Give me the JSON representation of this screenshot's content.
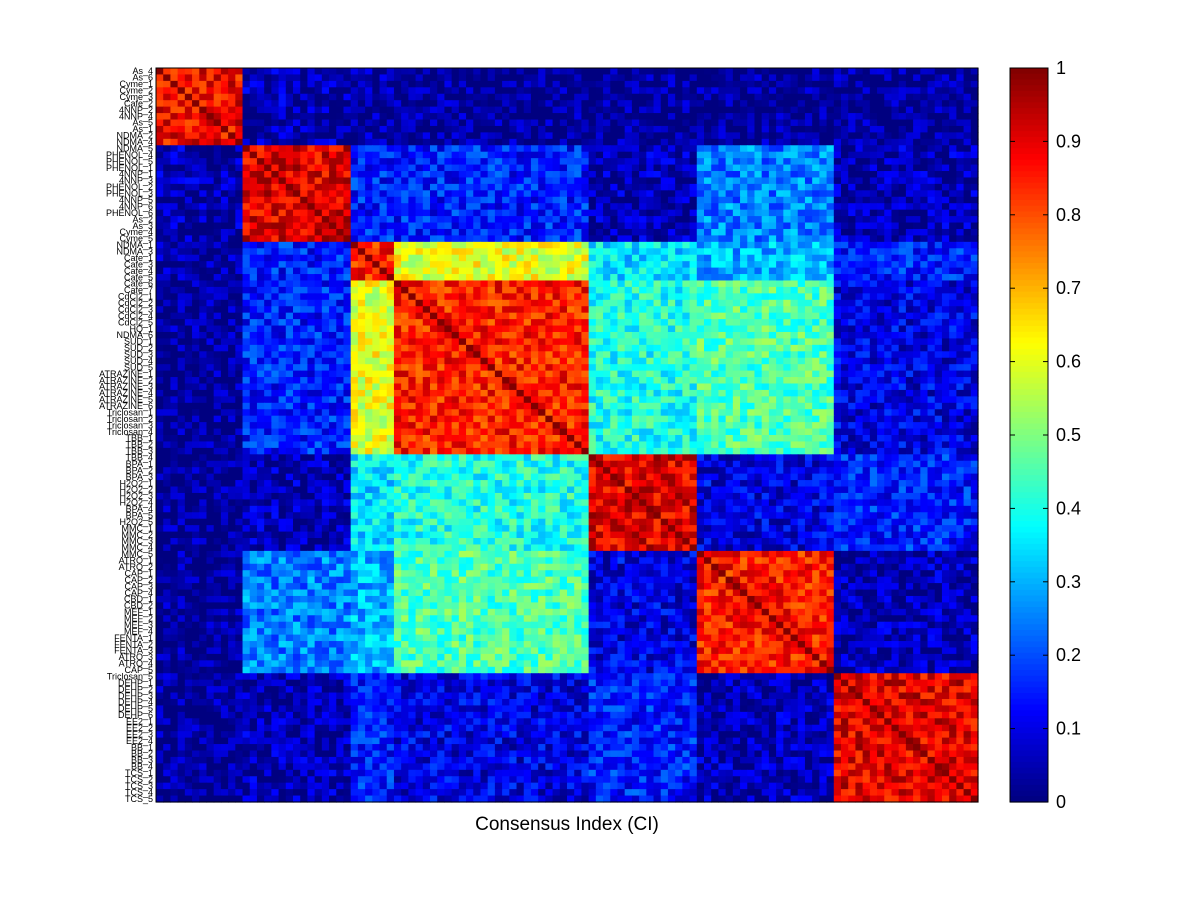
{
  "chart_data": {
    "type": "heatmap",
    "title": "",
    "xlabel": "Consensus Index (CI)",
    "ylabel": "",
    "colormap": "jet",
    "clim": [
      0,
      1
    ],
    "colorbar": {
      "ticks": [
        0,
        0.1,
        0.2,
        0.3,
        0.4,
        0.5,
        0.6,
        0.7,
        0.8,
        0.9,
        1
      ],
      "tick_labels": [
        "0",
        "0.1",
        "0.2",
        "0.3",
        "0.4",
        "0.5",
        "0.6",
        "0.7",
        "0.8",
        "0.9",
        "1"
      ]
    },
    "row_labels": [
      "As_4",
      "As_6",
      "Cyme_1",
      "Cyme_2",
      "Cyme_3",
      "Cafe_2",
      "4NNP_2",
      "4NNP_4",
      "As_5",
      "As_1",
      "NDMA_2",
      "NDMA_4",
      "NDMA_5",
      "PHENOL_4",
      "PHENOL_5",
      "PHENOL_1",
      "4NNP_1",
      "4NNP_3",
      "PHENOL_2",
      "PHENOL_3",
      "4NNP_5",
      "4NNP_6",
      "PHENOL_6",
      "As_2",
      "As_3",
      "Cyme_4",
      "Cyme_5",
      "NDMA_1",
      "NDMA_3",
      "Cafe_1",
      "Cafe_3",
      "Cafe_4",
      "Cafe_5",
      "Cafe_6",
      "Cafe_7",
      "CdCl2_1",
      "CdCl2_2",
      "CdCl2_3",
      "CdCl2_4",
      "CdCl2_5",
      "HQ_1",
      "NDMA_6",
      "SUD_1",
      "SUD_2",
      "SUD_3",
      "SUD_4",
      "SUD_5",
      "ATRAZINE_1",
      "ATRAZINE_2",
      "ATRAZINE_3",
      "ATRAZINE_4",
      "ATRAZINE_5",
      "ATRAZINE_6",
      "Triclosan_1",
      "Triclosan_2",
      "Triclosan_3",
      "Triclosan_4",
      "TBB_1",
      "TBB_2",
      "TBB_3",
      "TBB_4",
      "BPA_1",
      "BPA_2",
      "BPA_3",
      "H2O2_1",
      "H2O2_2",
      "H2O2_3",
      "H2O2_4",
      "BPA_4",
      "BPA_5",
      "H2O2_5",
      "MMC_1",
      "MMC_2",
      "MMC_3",
      "MMC_4",
      "MMC_5",
      "ATRO_1",
      "ATRO_2",
      "CAP_1",
      "CAP_2",
      "CAP_3",
      "CAP_4",
      "CBD_1",
      "CBD_2",
      "MEF_1",
      "MEF_2",
      "MEF_3",
      "MEF_4",
      "FENTA_1",
      "FENTA_2",
      "FENTA_3",
      "ATRO_3",
      "ATRO_4",
      "CAP_5",
      "Triclosan_5",
      "DEHP_1",
      "DEHP_2",
      "DEHP_3",
      "DEHP_4",
      "DEHP_5",
      "DEHP_6",
      "EE2_1",
      "EE2_2",
      "EE2_3",
      "EE2_4",
      "BB_1",
      "BB_2",
      "BB_3",
      "BB_4",
      "TCS_1",
      "TCS_2",
      "TCS_3",
      "TCS_4",
      "TCS_5"
    ],
    "n_items": 114,
    "cluster_boundaries": [
      0,
      12,
      27,
      33,
      60,
      75,
      94,
      114
    ],
    "block_values": [
      [
        0.88,
        0.05,
        0.03,
        0.02,
        0.02,
        0.02,
        0.02
      ],
      [
        0.05,
        0.9,
        0.15,
        0.15,
        0.05,
        0.25,
        0.05
      ],
      [
        0.03,
        0.15,
        0.85,
        0.6,
        0.35,
        0.3,
        0.15
      ],
      [
        0.02,
        0.15,
        0.6,
        0.85,
        0.4,
        0.45,
        0.1
      ],
      [
        0.02,
        0.05,
        0.35,
        0.4,
        0.9,
        0.1,
        0.15
      ],
      [
        0.02,
        0.25,
        0.3,
        0.45,
        0.1,
        0.85,
        0.05
      ],
      [
        0.02,
        0.05,
        0.15,
        0.1,
        0.15,
        0.05,
        0.9
      ]
    ]
  }
}
